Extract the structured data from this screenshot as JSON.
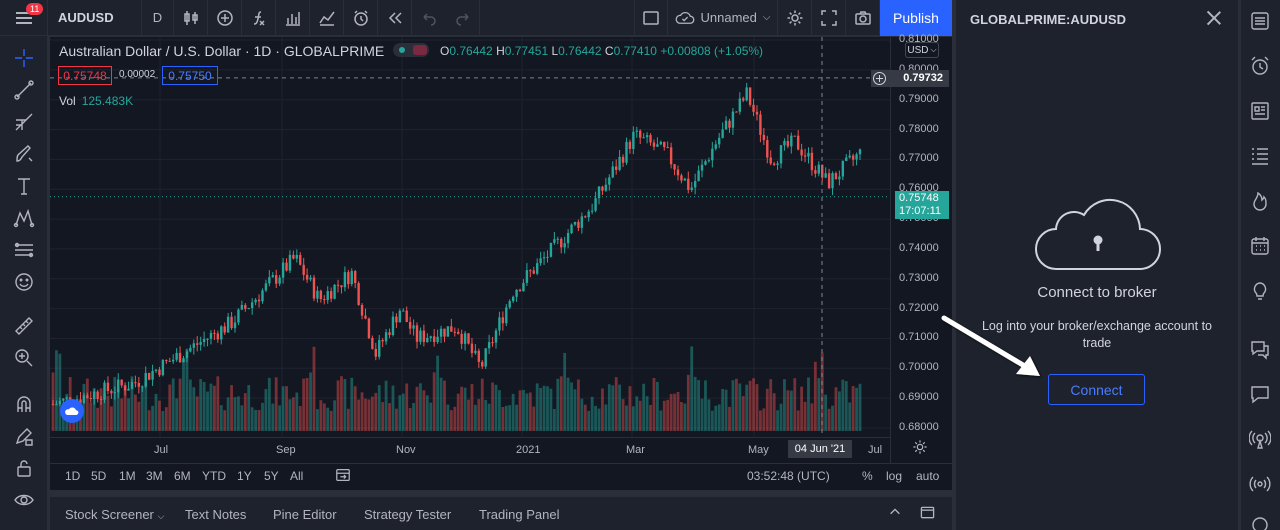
{
  "topbar": {
    "badge_count": "11",
    "symbol": "AUDUSD",
    "interval": "D",
    "chart_name": "Unnamed",
    "publish_label": "Publish"
  },
  "legend": {
    "title": "Australian Dollar / U.S. Dollar · 1D · GLOBALPRIME",
    "o_label": "O",
    "o_value": "0.76442",
    "h_label": "H",
    "h_value": "0.77451",
    "l_label": "L",
    "l_value": "0.76442",
    "c_label": "C",
    "c_value": "0.77410",
    "change": "+0.00808 (+1.05%)",
    "sell_price": "0.75748",
    "spread": "0.00002",
    "buy_price": "0.75750",
    "vol_label": "Vol",
    "vol_value": "125.483K"
  },
  "price_axis": {
    "currency": "USD",
    "crosshair_price": "0.79732",
    "last_price": "0.75748",
    "countdown": "17:07:11",
    "ticks": [
      "0.81000",
      "0.80000",
      "0.79000",
      "0.78000",
      "0.77000",
      "0.76000",
      "0.75000",
      "0.74000",
      "0.73000",
      "0.72000",
      "0.71000",
      "0.70000",
      "0.69000",
      "0.68000"
    ]
  },
  "time_axis": {
    "labels": [
      "Jul",
      "Sep",
      "Nov",
      "2021",
      "Mar",
      "May",
      "Jul"
    ],
    "crosshair_date": "04 Jun '21"
  },
  "range_bar": {
    "ranges": [
      "1D",
      "5D",
      "1M",
      "3M",
      "6M",
      "YTD",
      "1Y",
      "5Y",
      "All"
    ],
    "clock": "03:52:48 (UTC)",
    "percent": "%",
    "log": "log",
    "auto": "auto"
  },
  "bottom_tabs": [
    "Stock Screener",
    "Text Notes",
    "Pine Editor",
    "Strategy Tester",
    "Trading Panel"
  ],
  "broker_panel": {
    "title": "GLOBALPRIME:AUDUSD",
    "heading": "Connect to broker",
    "description": "Log into your broker/exchange account to trade",
    "connect_label": "Connect"
  },
  "chart_data": {
    "type": "candlestick",
    "symbol": "AUDUSD",
    "ylim": [
      0.68,
      0.81
    ],
    "x_ticks": [
      "Jul",
      "Sep",
      "Nov",
      "2021",
      "Mar",
      "May",
      "Jul"
    ],
    "anchors": [
      {
        "t": 0,
        "p": 0.688
      },
      {
        "t": 0.1,
        "p": 0.695
      },
      {
        "t": 0.22,
        "p": 0.715
      },
      {
        "t": 0.3,
        "p": 0.737
      },
      {
        "t": 0.33,
        "p": 0.723
      },
      {
        "t": 0.37,
        "p": 0.732
      },
      {
        "t": 0.4,
        "p": 0.705
      },
      {
        "t": 0.43,
        "p": 0.72
      },
      {
        "t": 0.45,
        "p": 0.71
      },
      {
        "t": 0.5,
        "p": 0.714
      },
      {
        "t": 0.53,
        "p": 0.7
      },
      {
        "t": 0.57,
        "p": 0.726
      },
      {
        "t": 0.62,
        "p": 0.74
      },
      {
        "t": 0.67,
        "p": 0.755
      },
      {
        "t": 0.72,
        "p": 0.778
      },
      {
        "t": 0.76,
        "p": 0.772
      },
      {
        "t": 0.79,
        "p": 0.76
      },
      {
        "t": 0.82,
        "p": 0.775
      },
      {
        "t": 0.86,
        "p": 0.792
      },
      {
        "t": 0.89,
        "p": 0.77
      },
      {
        "t": 0.92,
        "p": 0.776
      },
      {
        "t": 0.96,
        "p": 0.762
      },
      {
        "t": 1.0,
        "p": 0.772
      }
    ]
  }
}
